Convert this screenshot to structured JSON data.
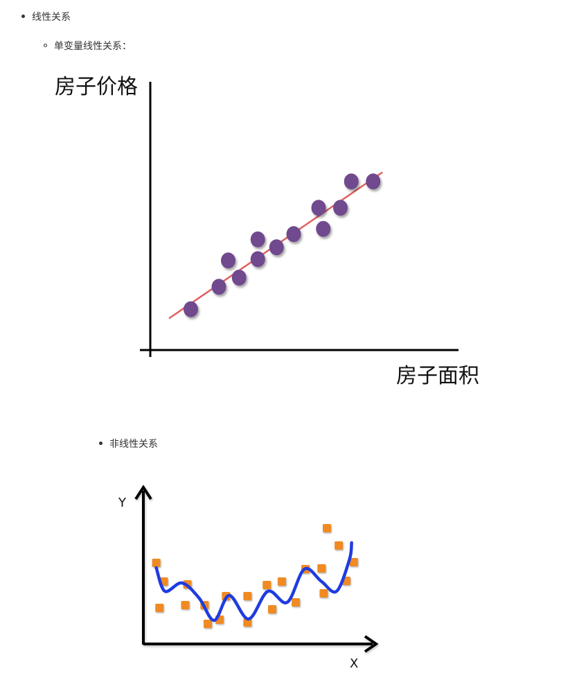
{
  "list": {
    "item1": "线性关系",
    "item1_sub": "单变量线性关系：",
    "item2": "非线性关系"
  },
  "chart_data": [
    {
      "type": "scatter",
      "title": "",
      "xlabel": "房子面积",
      "ylabel": "房子价格",
      "grid": false,
      "legend": "none",
      "point_color": "#6f4a8e",
      "line_color": "#e06060",
      "xlim": [
        0,
        10
      ],
      "ylim": [
        0,
        10
      ],
      "points": [
        {
          "x": 1.3,
          "y": 1.55
        },
        {
          "x": 2.2,
          "y": 2.4
        },
        {
          "x": 2.5,
          "y": 3.4
        },
        {
          "x": 2.85,
          "y": 2.75
        },
        {
          "x": 3.45,
          "y": 4.2
        },
        {
          "x": 3.45,
          "y": 3.45
        },
        {
          "x": 4.05,
          "y": 3.9
        },
        {
          "x": 4.6,
          "y": 4.4
        },
        {
          "x": 5.4,
          "y": 5.4
        },
        {
          "x": 5.55,
          "y": 4.6
        },
        {
          "x": 6.1,
          "y": 5.4
        },
        {
          "x": 6.45,
          "y": 6.4
        },
        {
          "x": 7.15,
          "y": 6.4
        }
      ],
      "fit_line": [
        {
          "x": 0.6,
          "y": 1.2
        },
        {
          "x": 7.45,
          "y": 6.75
        }
      ]
    },
    {
      "type": "scatter",
      "title": "",
      "xlabel": "X",
      "ylabel": "Y",
      "grid": false,
      "legend": "none",
      "point_color": "#f08a24",
      "curve_color": "#1f3ce0",
      "xlim": [
        0,
        10
      ],
      "ylim": [
        0,
        10
      ],
      "points": [
        {
          "x": 0.6,
          "y": 5.85
        },
        {
          "x": 0.75,
          "y": 2.6
        },
        {
          "x": 0.95,
          "y": 4.5
        },
        {
          "x": 1.95,
          "y": 2.8
        },
        {
          "x": 2.05,
          "y": 4.3
        },
        {
          "x": 2.85,
          "y": 2.8
        },
        {
          "x": 3.0,
          "y": 1.45
        },
        {
          "x": 3.55,
          "y": 1.75
        },
        {
          "x": 3.85,
          "y": 3.45
        },
        {
          "x": 4.85,
          "y": 1.55
        },
        {
          "x": 4.85,
          "y": 3.45
        },
        {
          "x": 5.75,
          "y": 4.25
        },
        {
          "x": 6.0,
          "y": 2.5
        },
        {
          "x": 6.45,
          "y": 4.5
        },
        {
          "x": 7.1,
          "y": 3.0
        },
        {
          "x": 7.55,
          "y": 5.4
        },
        {
          "x": 8.3,
          "y": 5.45
        },
        {
          "x": 8.4,
          "y": 3.65
        },
        {
          "x": 8.55,
          "y": 8.35
        },
        {
          "x": 9.1,
          "y": 7.1
        },
        {
          "x": 9.45,
          "y": 4.55
        },
        {
          "x": 9.8,
          "y": 5.9
        }
      ],
      "curve": [
        {
          "x": 0.6,
          "y": 5.5
        },
        {
          "x": 1.0,
          "y": 3.8
        },
        {
          "x": 1.8,
          "y": 4.4
        },
        {
          "x": 2.6,
          "y": 3.3
        },
        {
          "x": 3.3,
          "y": 1.7
        },
        {
          "x": 4.0,
          "y": 3.5
        },
        {
          "x": 4.9,
          "y": 1.8
        },
        {
          "x": 5.8,
          "y": 3.8
        },
        {
          "x": 6.7,
          "y": 3.0
        },
        {
          "x": 7.5,
          "y": 5.4
        },
        {
          "x": 8.3,
          "y": 4.5
        },
        {
          "x": 9.0,
          "y": 3.8
        },
        {
          "x": 9.6,
          "y": 6.1
        },
        {
          "x": 9.7,
          "y": 7.3
        }
      ]
    }
  ]
}
